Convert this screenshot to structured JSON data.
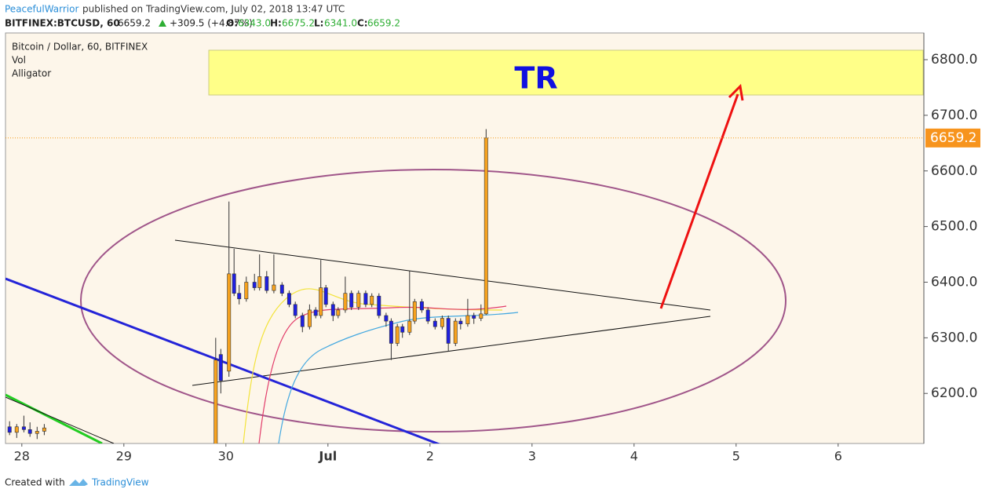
{
  "header": {
    "author": "PeacefulWarrior",
    "published": "published on TradingView.com, July 02, 2018 13:47 UTC",
    "symbol": "BITFINEX:BTCUSD, 60",
    "last": "6659.2",
    "change": "+309.5 (+4.87%)",
    "o_label": "O:",
    "open": "6343.0",
    "h_label": "H:",
    "high": "6675.2",
    "l_label": "L:",
    "low": "6341.0",
    "c_label": "C:",
    "close": "6659.2"
  },
  "legend": [
    "Bitcoin / Dollar, 60, BITFINEX",
    "Vol",
    "Alligator"
  ],
  "footer": {
    "created": "Created with",
    "brand": "TradingView"
  },
  "chart_data": {
    "type": "candlestick",
    "annotation": "TR",
    "up_color": "#f7a21e",
    "down_color": "#1f1fe0",
    "last_price": {
      "value": 6659.2,
      "label": "6659.2"
    },
    "ylim": [
      6110,
      6848
    ],
    "yticks": [
      {
        "value": 6200,
        "label": "6200.0"
      },
      {
        "value": 6300,
        "label": "6300.0"
      },
      {
        "value": 6400,
        "label": "6400.0"
      },
      {
        "value": 6500,
        "label": "6500.0"
      },
      {
        "value": 6600,
        "label": "6600.0"
      },
      {
        "value": 6700,
        "label": "6700.0"
      },
      {
        "value": 6800,
        "label": "6800.0"
      }
    ],
    "xlim": [
      -0.16,
      8.84
    ],
    "xticks": [
      {
        "value": 0,
        "label": "28"
      },
      {
        "value": 1,
        "label": "29"
      },
      {
        "value": 2,
        "label": "30"
      },
      {
        "value": 3,
        "label": "Jul"
      },
      {
        "value": 4,
        "label": "2"
      },
      {
        "value": 5,
        "label": "3"
      },
      {
        "value": 6,
        "label": "4"
      },
      {
        "value": 7,
        "label": "5"
      },
      {
        "value": 8,
        "label": "6"
      }
    ],
    "candles": [
      {
        "x": -0.12,
        "open": 6140,
        "high": 6150,
        "low": 6125,
        "close": 6130
      },
      {
        "x": -0.05,
        "open": 6130,
        "high": 6145,
        "low": 6120,
        "close": 6140
      },
      {
        "x": 0.02,
        "open": 6140,
        "high": 6160,
        "low": 6130,
        "close": 6135
      },
      {
        "x": 0.08,
        "open": 6135,
        "high": 6148,
        "low": 6122,
        "close": 6128
      },
      {
        "x": 0.15,
        "open": 6128,
        "high": 6140,
        "low": 6118,
        "close": 6132
      },
      {
        "x": 0.22,
        "open": 6132,
        "high": 6145,
        "low": 6125,
        "close": 6138
      },
      {
        "x": 1.9,
        "open": 6100,
        "high": 6300,
        "low": 6090,
        "close": 6260
      },
      {
        "x": 1.95,
        "open": 6270,
        "high": 6280,
        "low": 6200,
        "close": 6223
      },
      {
        "x": 2.03,
        "open": 6240,
        "high": 6545,
        "low": 6230,
        "close": 6415
      },
      {
        "x": 2.08,
        "open": 6415,
        "high": 6460,
        "low": 6375,
        "close": 6380
      },
      {
        "x": 2.13,
        "open": 6380,
        "high": 6395,
        "low": 6360,
        "close": 6370
      },
      {
        "x": 2.2,
        "open": 6370,
        "high": 6410,
        "low": 6365,
        "close": 6400
      },
      {
        "x": 2.28,
        "open": 6400,
        "high": 6415,
        "low": 6385,
        "close": 6390
      },
      {
        "x": 2.33,
        "open": 6390,
        "high": 6450,
        "low": 6385,
        "close": 6410
      },
      {
        "x": 2.4,
        "open": 6410,
        "high": 6420,
        "low": 6380,
        "close": 6385
      },
      {
        "x": 2.47,
        "open": 6385,
        "high": 6450,
        "low": 6380,
        "close": 6395
      },
      {
        "x": 2.55,
        "open": 6395,
        "high": 6400,
        "low": 6375,
        "close": 6380
      },
      {
        "x": 2.62,
        "open": 6380,
        "high": 6385,
        "low": 6355,
        "close": 6360
      },
      {
        "x": 2.68,
        "open": 6360,
        "high": 6365,
        "low": 6335,
        "close": 6340
      },
      {
        "x": 2.75,
        "open": 6340,
        "high": 6345,
        "low": 6310,
        "close": 6320
      },
      {
        "x": 2.82,
        "open": 6320,
        "high": 6360,
        "low": 6315,
        "close": 6350
      },
      {
        "x": 2.88,
        "open": 6350,
        "high": 6355,
        "low": 6335,
        "close": 6340
      },
      {
        "x": 2.93,
        "open": 6340,
        "high": 6440,
        "low": 6335,
        "close": 6390
      },
      {
        "x": 2.98,
        "open": 6390,
        "high": 6395,
        "low": 6355,
        "close": 6360
      },
      {
        "x": 3.05,
        "open": 6360,
        "high": 6365,
        "low": 6330,
        "close": 6340
      },
      {
        "x": 3.1,
        "open": 6340,
        "high": 6355,
        "low": 6335,
        "close": 6350
      },
      {
        "x": 3.17,
        "open": 6350,
        "high": 6410,
        "low": 6345,
        "close": 6380
      },
      {
        "x": 3.23,
        "open": 6380,
        "high": 6385,
        "low": 6350,
        "close": 6355
      },
      {
        "x": 3.3,
        "open": 6355,
        "high": 6385,
        "low": 6350,
        "close": 6380
      },
      {
        "x": 3.37,
        "open": 6380,
        "high": 6385,
        "low": 6355,
        "close": 6360
      },
      {
        "x": 3.43,
        "open": 6360,
        "high": 6380,
        "low": 6355,
        "close": 6375
      },
      {
        "x": 3.5,
        "open": 6375,
        "high": 6380,
        "low": 6335,
        "close": 6340
      },
      {
        "x": 3.57,
        "open": 6340,
        "high": 6345,
        "low": 6320,
        "close": 6330
      },
      {
        "x": 3.62,
        "open": 6330,
        "high": 6335,
        "low": 6260,
        "close": 6290
      },
      {
        "x": 3.68,
        "open": 6290,
        "high": 6325,
        "low": 6285,
        "close": 6320
      },
      {
        "x": 3.73,
        "open": 6320,
        "high": 6325,
        "low": 6300,
        "close": 6310
      },
      {
        "x": 3.8,
        "open": 6310,
        "high": 6420,
        "low": 6305,
        "close": 6330
      },
      {
        "x": 3.85,
        "open": 6330,
        "high": 6370,
        "low": 6325,
        "close": 6365
      },
      {
        "x": 3.92,
        "open": 6365,
        "high": 6370,
        "low": 6345,
        "close": 6350
      },
      {
        "x": 3.98,
        "open": 6350,
        "high": 6355,
        "low": 6325,
        "close": 6330
      },
      {
        "x": 4.05,
        "open": 6330,
        "high": 6335,
        "low": 6315,
        "close": 6320
      },
      {
        "x": 4.12,
        "open": 6320,
        "high": 6340,
        "low": 6315,
        "close": 6335
      },
      {
        "x": 4.18,
        "open": 6335,
        "high": 6340,
        "low": 6275,
        "close": 6290
      },
      {
        "x": 4.25,
        "open": 6290,
        "high": 6335,
        "low": 6285,
        "close": 6330
      },
      {
        "x": 4.3,
        "open": 6330,
        "high": 6335,
        "low": 6315,
        "close": 6325
      },
      {
        "x": 4.37,
        "open": 6325,
        "high": 6370,
        "low": 6320,
        "close": 6340
      },
      {
        "x": 4.43,
        "open": 6340,
        "high": 6345,
        "low": 6325,
        "close": 6335
      },
      {
        "x": 4.5,
        "open": 6335,
        "high": 6360,
        "low": 6330,
        "close": 6343
      },
      {
        "x": 4.55,
        "open": 6343,
        "high": 6675.2,
        "low": 6341,
        "close": 6659.2
      }
    ]
  }
}
